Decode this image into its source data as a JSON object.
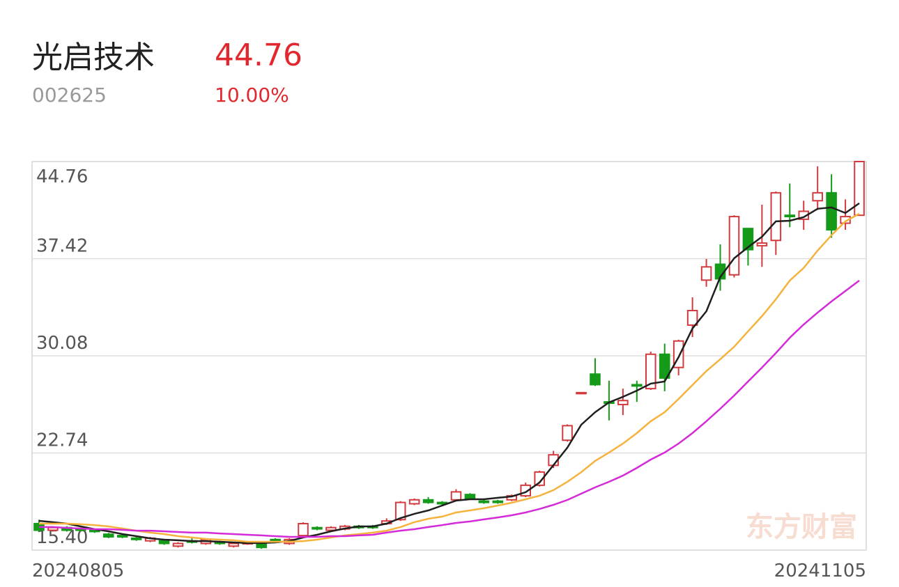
{
  "header": {
    "name": "光启技术",
    "price": "44.76",
    "code": "002625",
    "change": "10.00%"
  },
  "chart_data": {
    "type": "candlestick",
    "watermark": "东方财富",
    "categories": [
      "20240805",
      null,
      null,
      null,
      null,
      null,
      null,
      null,
      null,
      null,
      null,
      null,
      null,
      null,
      null,
      null,
      null,
      null,
      null,
      null,
      null,
      null,
      null,
      null,
      null,
      null,
      null,
      null,
      null,
      null,
      null,
      null,
      null,
      null,
      null,
      null,
      null,
      null,
      null,
      null,
      null,
      null,
      null,
      null,
      null,
      null,
      null,
      null,
      null,
      null,
      null,
      null,
      null,
      null,
      null,
      null,
      null,
      null,
      null,
      "20241105"
    ],
    "open": [
      17.4,
      16.9,
      17.1,
      17.0,
      16.9,
      16.6,
      16.5,
      16.3,
      16.1,
      16.1,
      15.7,
      16.1,
      15.9,
      16.0,
      15.7,
      15.9,
      15.9,
      16.2,
      15.9,
      16.5,
      17.1,
      16.9,
      17.0,
      17.2,
      17.2,
      17.4,
      17.7,
      18.9,
      19.2,
      19.0,
      19.2,
      19.6,
      19.1,
      19.1,
      19.2,
      19.5,
      20.3,
      21.8,
      23.7,
      27.3,
      28.7,
      26.6,
      26.4,
      27.9,
      27.6,
      30.2,
      29.2,
      32.4,
      35.8,
      37.0,
      36.2,
      39.7,
      38.4,
      38.8,
      40.7,
      40.4,
      41.8,
      42.4,
      40.1,
      40.7
    ],
    "close": [
      16.9,
      17.1,
      16.9,
      16.9,
      16.8,
      16.4,
      16.4,
      16.2,
      16.3,
      15.9,
      15.9,
      16.0,
      16.2,
      15.9,
      15.9,
      15.95,
      15.6,
      16.1,
      16.2,
      17.4,
      17.0,
      17.1,
      17.2,
      17.1,
      17.1,
      17.6,
      19.0,
      19.2,
      19.0,
      18.9,
      19.8,
      19.3,
      19.0,
      19.0,
      19.5,
      20.3,
      21.3,
      22.6,
      24.8,
      27.3,
      27.9,
      26.5,
      26.7,
      27.8,
      30.2,
      28.4,
      31.2,
      33.5,
      36.8,
      35.9,
      40.6,
      38.1,
      38.6,
      42.4,
      40.6,
      41.0,
      42.4,
      39.6,
      40.6,
      44.76
    ],
    "high": [
      17.7,
      17.2,
      17.2,
      17.1,
      17.0,
      16.7,
      16.6,
      16.4,
      16.4,
      16.2,
      16.0,
      16.4,
      16.3,
      16.1,
      16.0,
      16.0,
      16.0,
      16.3,
      16.3,
      17.5,
      17.2,
      17.2,
      17.3,
      17.3,
      17.3,
      17.8,
      19.1,
      19.3,
      19.4,
      19.1,
      20.0,
      19.7,
      19.2,
      19.2,
      19.6,
      20.5,
      21.4,
      22.9,
      24.9,
      27.3,
      29.9,
      28.2,
      27.6,
      28.2,
      30.4,
      31.0,
      31.3,
      34.5,
      37.4,
      38.5,
      40.7,
      39.7,
      41.5,
      42.5,
      43.1,
      41.8,
      44.4,
      43.8,
      41.9,
      44.76
    ],
    "low": [
      16.8,
      16.8,
      16.8,
      16.8,
      16.7,
      16.3,
      16.3,
      16.1,
      16.0,
      15.8,
      15.6,
      15.9,
      15.8,
      15.8,
      15.6,
      15.8,
      15.5,
      16.0,
      15.8,
      16.4,
      16.9,
      16.8,
      16.9,
      17.0,
      17.0,
      17.3,
      17.6,
      18.8,
      18.9,
      18.8,
      19.1,
      19.2,
      18.9,
      18.9,
      19.1,
      19.4,
      20.2,
      21.6,
      23.6,
      27.3,
      27.8,
      25.2,
      25.6,
      26.6,
      27.5,
      27.4,
      28.6,
      31.5,
      35.3,
      35.0,
      36.0,
      36.9,
      36.8,
      37.7,
      39.8,
      39.6,
      41.1,
      39.0,
      39.6,
      40.7
    ],
    "up_color": "#d23a3e",
    "down_color": "#159a1a",
    "series": [
      {
        "color": "#1f1f1f",
        "values": [
          17.61,
          17.51,
          17.4,
          17.19,
          16.98,
          16.82,
          16.61,
          16.45,
          16.29,
          16.19,
          16.14,
          16.08,
          16.08,
          16.03,
          15.98,
          15.93,
          15.93,
          15.98,
          16.08,
          16.35,
          16.56,
          16.82,
          17.03,
          17.19,
          17.19,
          17.4,
          17.82,
          18.14,
          18.4,
          18.77,
          19.14,
          19.24,
          19.24,
          19.35,
          19.45,
          19.77,
          20.51,
          21.82,
          23.14,
          24.87,
          25.82,
          26.56,
          26.98,
          27.45,
          27.98,
          28.14,
          29.98,
          32.14,
          33.45,
          36.03,
          37.45,
          38.29,
          39.08,
          40.24,
          40.29,
          40.56,
          41.19,
          41.29,
          40.87,
          41.61
        ]
      },
      {
        "color": "#f5b23c",
        "values": [
          17.4,
          17.4,
          17.4,
          17.35,
          17.29,
          17.19,
          17.03,
          16.87,
          16.72,
          16.61,
          16.45,
          16.35,
          16.24,
          16.19,
          16.14,
          16.03,
          16.03,
          16.03,
          16.03,
          16.08,
          16.19,
          16.35,
          16.51,
          16.61,
          16.72,
          16.87,
          17.14,
          17.51,
          17.77,
          17.93,
          18.24,
          18.4,
          18.56,
          18.77,
          18.98,
          19.24,
          19.51,
          19.93,
          20.56,
          21.29,
          22.14,
          22.77,
          23.45,
          24.24,
          25.14,
          25.82,
          26.82,
          27.87,
          28.93,
          29.82,
          30.77,
          31.93,
          33.08,
          34.35,
          35.77,
          36.72,
          38.03,
          39.19,
          40.24,
          40.82
        ]
      },
      {
        "color": "#d42ad8",
        "values": [
          17.14,
          17.14,
          17.08,
          17.03,
          16.98,
          16.98,
          16.93,
          16.87,
          16.87,
          16.82,
          16.77,
          16.72,
          16.72,
          16.66,
          16.61,
          16.56,
          16.51,
          16.45,
          16.4,
          16.4,
          16.4,
          16.45,
          16.45,
          16.51,
          16.56,
          16.72,
          16.87,
          16.98,
          17.14,
          17.29,
          17.45,
          17.56,
          17.72,
          17.87,
          18.03,
          18.24,
          18.51,
          18.82,
          19.19,
          19.66,
          20.14,
          20.56,
          21.03,
          21.61,
          22.24,
          22.77,
          23.45,
          24.24,
          25.14,
          26.08,
          27.08,
          28.14,
          29.19,
          30.29,
          31.45,
          32.45,
          33.35,
          34.19,
          34.98,
          35.77
        ]
      }
    ],
    "ylim": [
      15.4,
      44.76
    ],
    "yticks": [
      {
        "value": 15.4,
        "label": "15.40"
      },
      22.74,
      30.08,
      37.42,
      44.76
    ],
    "grid": true
  }
}
